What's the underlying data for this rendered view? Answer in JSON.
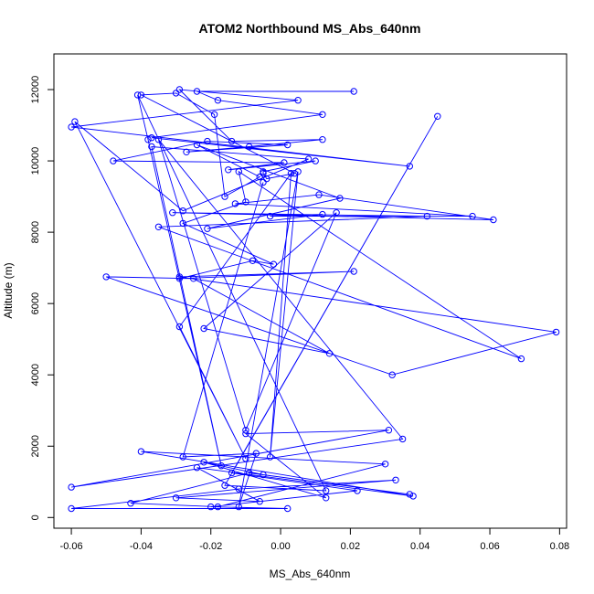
{
  "chart_data": {
    "type": "line",
    "title": "ATOM2 Northbound MS_Abs_640nm",
    "xlabel": "MS_Abs_640nm",
    "ylabel": "Altitude (m)",
    "xlim": [
      -0.065,
      0.082
    ],
    "ylim": [
      -300,
      13000
    ],
    "x_ticks": [
      -0.06,
      -0.04,
      -0.02,
      0.0,
      0.02,
      0.04,
      0.06,
      0.08
    ],
    "x_tick_labels": [
      "-0.06",
      "-0.04",
      "-0.02",
      "0.00",
      "0.02",
      "0.04",
      "0.06",
      "0.08"
    ],
    "y_ticks": [
      0,
      2000,
      4000,
      6000,
      8000,
      10000,
      12000
    ],
    "y_tick_labels": [
      "0",
      "2000",
      "4000",
      "6000",
      "8000",
      "10000",
      "12000"
    ],
    "grid": false,
    "marker": "open-circle",
    "line_color": "#0000ff",
    "series": [
      {
        "x": [
          0.021,
          -0.024,
          -0.018,
          0.012,
          -0.037,
          0.037,
          -0.06,
          0.005,
          -0.029,
          -0.014,
          0.012,
          -0.009,
          -0.027,
          0.002,
          -0.021,
          -0.048,
          0.001,
          -0.015,
          0.01,
          -0.005,
          -0.005,
          -0.004,
          0.004,
          -0.04,
          -0.03,
          -0.019,
          -0.016,
          -0.006,
          -0.024,
          0.017,
          -0.021,
          0.012,
          -0.003,
          0.055,
          -0.013,
          0.011,
          0.061,
          -0.031,
          0.042,
          -0.035,
          0.069,
          -0.012,
          -0.01,
          -0.028,
          -0.002,
          -0.008,
          -0.029,
          0.021,
          -0.029,
          0.079,
          0.032,
          -0.05,
          -0.025,
          0.014,
          -0.022,
          0.016,
          -0.01,
          -0.035,
          0.035,
          -0.06,
          0.031,
          -0.01,
          0.013,
          -0.022,
          -0.005,
          0.037,
          -0.009,
          -0.043,
          -0.018,
          0.03,
          -0.04,
          0.038,
          -0.024,
          -0.006,
          -0.03,
          0.033,
          -0.012,
          -0.06,
          0.002,
          -0.02,
          0.022,
          -0.014,
          0.045,
          -0.016,
          0.013,
          -0.041,
          -0.038,
          -0.017,
          -0.037,
          0.008,
          -0.028,
          -0.059,
          -0.01,
          -0.029,
          0.003,
          -0.003,
          0.005,
          -0.012,
          -0.007,
          -0.028,
          -0.005
        ],
        "y": [
          11950,
          11950,
          11700,
          11300,
          10650,
          9850,
          10950,
          11700,
          12000,
          10550,
          10600,
          10400,
          10250,
          10450,
          10550,
          10000,
          9950,
          9750,
          10000,
          9700,
          9650,
          9500,
          9650,
          11850,
          11900,
          11300,
          9000,
          9550,
          10450,
          8950,
          8100,
          8500,
          8450,
          8450,
          8800,
          9050,
          8350,
          8550,
          8450,
          8150,
          4450,
          9700,
          8850,
          8250,
          7100,
          7200,
          6700,
          6900,
          6750,
          5200,
          4000,
          6750,
          6700,
          4600,
          5300,
          8550,
          2450,
          10600,
          2200,
          850,
          2450,
          2350,
          550,
          1550,
          1200,
          650,
          1250,
          400,
          300,
          1500,
          1850,
          600,
          1400,
          450,
          550,
          1050,
          800,
          250,
          250,
          300,
          750,
          1250,
          11250,
          900,
          750,
          11850,
          10600,
          1450,
          10400,
          10050,
          8600,
          11100,
          1650,
          5350,
          9650,
          1700,
          9700,
          300,
          1800,
          1700,
          9400
        ]
      }
    ]
  }
}
